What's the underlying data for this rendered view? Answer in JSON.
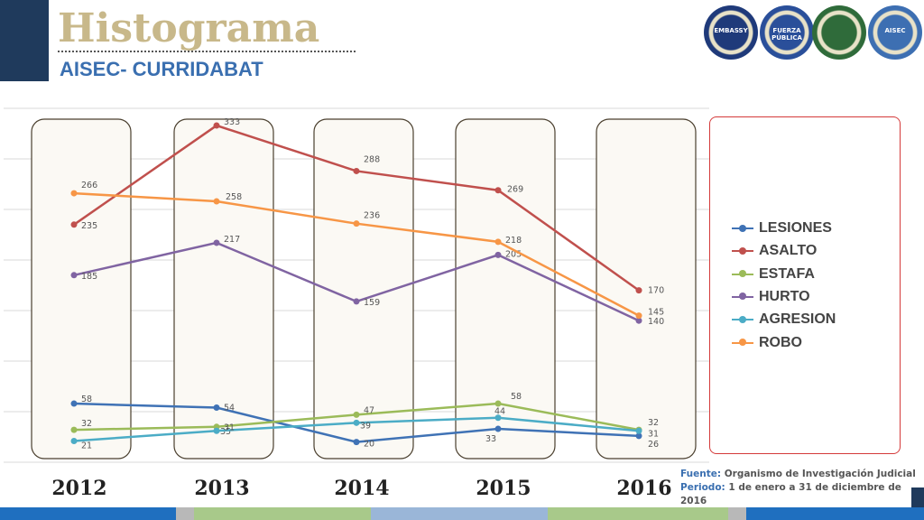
{
  "header": {
    "title": "Histograma",
    "subtitle": "AISEC- CURRIDABAT"
  },
  "logos": [
    {
      "name": "us-embassy-seal",
      "color": "#1f3a7a",
      "text": "EMBASSY"
    },
    {
      "name": "fuerza-publica-badge",
      "color": "#2a4f9a",
      "text": "FUERZA PÚBLICA"
    },
    {
      "name": "policia-colombia-seal",
      "color": "#2f6b3a",
      "text": ""
    },
    {
      "name": "aisec-seal",
      "color": "#3d6fb2",
      "text": "AISEC"
    }
  ],
  "chart_data": {
    "type": "line",
    "categories": [
      "2012",
      "2013",
      "2014",
      "2015",
      "2016"
    ],
    "ylim": [
      0,
      350
    ],
    "grid": true,
    "legend": "right",
    "series": [
      {
        "name": "LESIONES",
        "color": "#3f72b5",
        "values": [
          58,
          54,
          20,
          33,
          26
        ]
      },
      {
        "name": "ASALTO",
        "color": "#c0504d",
        "values": [
          235,
          333,
          288,
          269,
          170
        ]
      },
      {
        "name": "ESTAFA",
        "color": "#9bbb59",
        "values": [
          32,
          35,
          47,
          58,
          32
        ]
      },
      {
        "name": "HURTO",
        "color": "#8064a2",
        "values": [
          185,
          217,
          159,
          205,
          140
        ]
      },
      {
        "name": "AGRESION",
        "color": "#4bacc6",
        "values": [
          21,
          31,
          39,
          44,
          31
        ]
      },
      {
        "name": "ROBO",
        "color": "#f79646",
        "values": [
          266,
          258,
          236,
          218,
          145
        ]
      }
    ]
  },
  "source": {
    "label": "Fuente:",
    "text": "Organismo de Investigación Judicial",
    "period_label": "Periodo:",
    "period_text": "1 de enero a 31 de diciembre de 2016"
  },
  "colors": {
    "title": "#c8b88a",
    "subtitle": "#3a6fb0",
    "sidebar": "#1f3a5c",
    "legend_border": "#d43a3a"
  }
}
